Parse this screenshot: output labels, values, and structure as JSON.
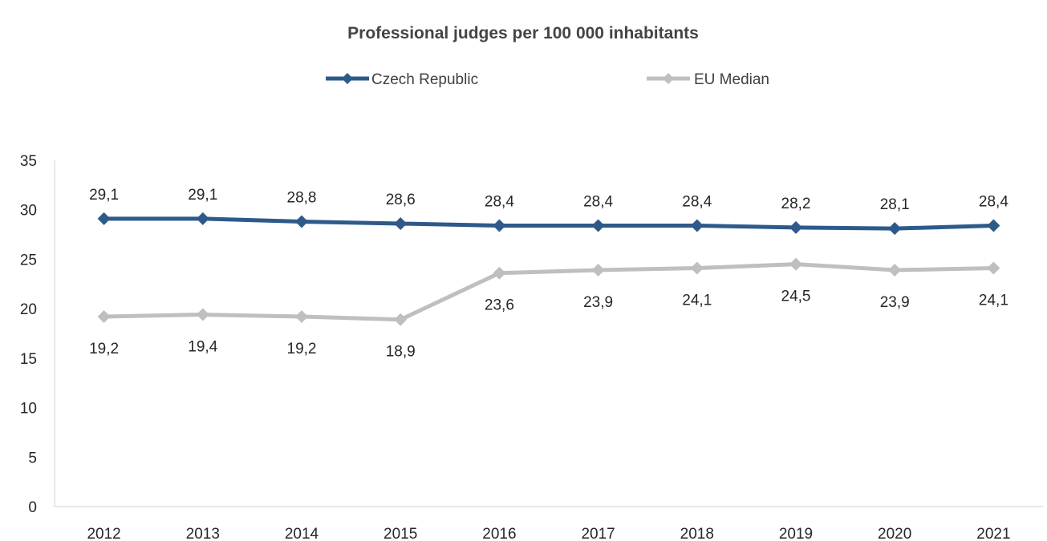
{
  "chart_data": {
    "type": "line",
    "title": "Professional judges per 100 000 inhabitants",
    "xlabel": "",
    "ylabel": "",
    "categories": [
      "2012",
      "2013",
      "2014",
      "2015",
      "2016",
      "2017",
      "2018",
      "2019",
      "2020",
      "2021"
    ],
    "ylim": [
      0,
      35
    ],
    "yticks": [
      "0",
      "5",
      "10",
      "15",
      "20",
      "25",
      "30",
      "35"
    ],
    "grid": false,
    "legend_position": "top",
    "series": [
      {
        "name": "Czech Republic",
        "color": "#2E5A8A",
        "marker": "diamond",
        "label_position": "above",
        "values": [
          29.1,
          29.1,
          28.8,
          28.6,
          28.4,
          28.4,
          28.4,
          28.2,
          28.1,
          28.4
        ],
        "labels": [
          "29,1",
          "29,1",
          "28,8",
          "28,6",
          "28,4",
          "28,4",
          "28,4",
          "28,2",
          "28,1",
          "28,4"
        ]
      },
      {
        "name": "EU Median",
        "color": "#BFBFBF",
        "marker": "diamond",
        "label_position": "below",
        "values": [
          19.2,
          19.4,
          19.2,
          18.9,
          23.6,
          23.9,
          24.1,
          24.5,
          23.9,
          24.1
        ],
        "labels": [
          "19,2",
          "19,4",
          "19,2",
          "18,9",
          "23,6",
          "23,9",
          "24,1",
          "24,5",
          "23,9",
          "24,1"
        ]
      }
    ]
  }
}
